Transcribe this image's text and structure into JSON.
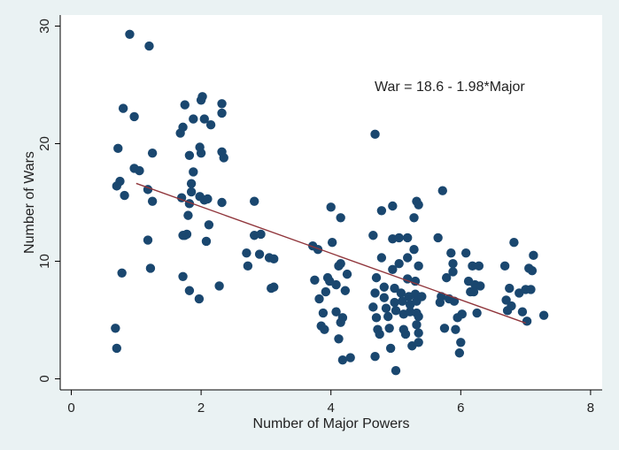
{
  "chart_data": {
    "type": "scatter",
    "title": "",
    "xlabel": "Number of Major Powers",
    "ylabel": "Number of Wars",
    "xlim": [
      0,
      8
    ],
    "ylim": [
      0,
      30
    ],
    "xticks": [
      0,
      2,
      4,
      6,
      8
    ],
    "yticks": [
      0,
      10,
      20,
      30
    ],
    "grid": false,
    "annotation": "War = 18.6 - 1.98*Major",
    "fit_line": {
      "intercept": 18.6,
      "slope": -1.98,
      "x_range": [
        1.0,
        7.0
      ]
    },
    "colors": {
      "background": "#eaf2f3",
      "plot_bg": "#ffffff",
      "points": "#1a476f",
      "fit_line": "#90353b"
    },
    "series": [
      {
        "points": [
          [
            0.9,
            29.3
          ],
          [
            1.2,
            28.3
          ],
          [
            0.8,
            23.0
          ],
          [
            0.97,
            22.3
          ],
          [
            0.72,
            19.6
          ],
          [
            0.97,
            17.9
          ],
          [
            1.05,
            17.7
          ],
          [
            0.75,
            16.8
          ],
          [
            0.7,
            16.4
          ],
          [
            0.82,
            15.6
          ],
          [
            1.18,
            16.1
          ],
          [
            1.25,
            15.1
          ],
          [
            1.25,
            19.2
          ],
          [
            1.18,
            11.8
          ],
          [
            1.22,
            9.4
          ],
          [
            0.78,
            9.0
          ],
          [
            0.68,
            4.3
          ],
          [
            0.7,
            2.6
          ],
          [
            1.68,
            20.9
          ],
          [
            1.72,
            21.4
          ],
          [
            1.75,
            23.3
          ],
          [
            1.82,
            19.0
          ],
          [
            1.88,
            22.1
          ],
          [
            1.88,
            17.6
          ],
          [
            1.85,
            16.6
          ],
          [
            1.85,
            15.9
          ],
          [
            1.82,
            14.9
          ],
          [
            1.7,
            15.4
          ],
          [
            1.8,
            13.9
          ],
          [
            1.72,
            12.2
          ],
          [
            1.78,
            12.3
          ],
          [
            1.72,
            8.7
          ],
          [
            1.82,
            7.5
          ],
          [
            1.97,
            6.8
          ],
          [
            1.98,
            19.7
          ],
          [
            2.0,
            23.7
          ],
          [
            2.02,
            24.0
          ],
          [
            2.05,
            22.1
          ],
          [
            2.15,
            21.6
          ],
          [
            2.0,
            19.2
          ],
          [
            1.98,
            15.5
          ],
          [
            2.05,
            15.2
          ],
          [
            2.1,
            15.3
          ],
          [
            2.12,
            13.1
          ],
          [
            2.08,
            11.7
          ],
          [
            2.32,
            23.4
          ],
          [
            2.32,
            22.6
          ],
          [
            2.32,
            19.3
          ],
          [
            2.35,
            18.8
          ],
          [
            2.32,
            15.0
          ],
          [
            2.28,
            7.9
          ],
          [
            1.75,
            12.2
          ],
          [
            2.7,
            10.7
          ],
          [
            2.72,
            9.6
          ],
          [
            2.82,
            15.1
          ],
          [
            2.82,
            12.2
          ],
          [
            2.9,
            10.6
          ],
          [
            2.92,
            12.3
          ],
          [
            3.05,
            10.3
          ],
          [
            3.08,
            7.7
          ],
          [
            3.12,
            10.2
          ],
          [
            3.12,
            7.8
          ],
          [
            3.72,
            11.3
          ],
          [
            3.75,
            8.4
          ],
          [
            3.8,
            11.0
          ],
          [
            3.82,
            6.8
          ],
          [
            3.85,
            4.5
          ],
          [
            3.88,
            5.6
          ],
          [
            3.9,
            4.2
          ],
          [
            3.92,
            7.4
          ],
          [
            3.95,
            8.6
          ],
          [
            3.98,
            8.3
          ],
          [
            4.0,
            14.6
          ],
          [
            4.02,
            11.6
          ],
          [
            4.08,
            5.7
          ],
          [
            4.08,
            8.0
          ],
          [
            4.12,
            3.4
          ],
          [
            4.12,
            9.6
          ],
          [
            4.15,
            13.7
          ],
          [
            4.15,
            9.8
          ],
          [
            4.15,
            4.8
          ],
          [
            4.18,
            5.2
          ],
          [
            4.18,
            1.6
          ],
          [
            4.22,
            7.5
          ],
          [
            4.25,
            8.9
          ],
          [
            4.3,
            1.8
          ],
          [
            4.68,
            20.8
          ],
          [
            4.65,
            12.2
          ],
          [
            4.7,
            8.6
          ],
          [
            4.68,
            7.3
          ],
          [
            4.65,
            6.1
          ],
          [
            4.7,
            5.2
          ],
          [
            4.72,
            4.2
          ],
          [
            4.75,
            3.8
          ],
          [
            4.68,
            1.9
          ],
          [
            4.78,
            14.3
          ],
          [
            4.78,
            10.3
          ],
          [
            4.82,
            7.8
          ],
          [
            4.82,
            6.9
          ],
          [
            4.85,
            6.0
          ],
          [
            4.88,
            5.3
          ],
          [
            4.9,
            4.3
          ],
          [
            4.92,
            2.6
          ],
          [
            4.95,
            14.7
          ],
          [
            4.95,
            11.9
          ],
          [
            4.95,
            9.3
          ],
          [
            4.98,
            7.7
          ],
          [
            4.98,
            6.5
          ],
          [
            5.0,
            5.8
          ],
          [
            5.0,
            0.7
          ],
          [
            5.05,
            12.0
          ],
          [
            5.05,
            9.8
          ],
          [
            5.08,
            7.3
          ],
          [
            5.1,
            6.6
          ],
          [
            5.12,
            5.5
          ],
          [
            5.12,
            4.2
          ],
          [
            5.15,
            3.8
          ],
          [
            5.18,
            12.0
          ],
          [
            5.18,
            10.3
          ],
          [
            5.18,
            8.5
          ],
          [
            5.2,
            7.0
          ],
          [
            5.22,
            6.3
          ],
          [
            5.22,
            5.7
          ],
          [
            5.25,
            2.8
          ],
          [
            5.28,
            13.7
          ],
          [
            5.28,
            11.0
          ],
          [
            5.3,
            8.3
          ],
          [
            5.3,
            7.2
          ],
          [
            5.32,
            6.6
          ],
          [
            5.32,
            5.6
          ],
          [
            5.32,
            4.6
          ],
          [
            5.35,
            3.9
          ],
          [
            5.32,
            15.1
          ],
          [
            5.35,
            14.8
          ],
          [
            5.35,
            9.6
          ],
          [
            5.35,
            3.1
          ],
          [
            5.35,
            5.3
          ],
          [
            5.4,
            7.0
          ],
          [
            5.65,
            12.0
          ],
          [
            5.68,
            6.5
          ],
          [
            5.7,
            7.0
          ],
          [
            5.72,
            16.0
          ],
          [
            5.75,
            4.3
          ],
          [
            5.78,
            8.6
          ],
          [
            5.82,
            6.8
          ],
          [
            5.85,
            10.7
          ],
          [
            5.88,
            9.8
          ],
          [
            5.88,
            9.1
          ],
          [
            5.9,
            6.6
          ],
          [
            5.92,
            4.2
          ],
          [
            5.95,
            5.2
          ],
          [
            5.98,
            2.2
          ],
          [
            6.0,
            3.1
          ],
          [
            6.02,
            5.5
          ],
          [
            6.08,
            10.7
          ],
          [
            6.12,
            8.3
          ],
          [
            6.15,
            7.4
          ],
          [
            6.18,
            9.6
          ],
          [
            6.2,
            7.4
          ],
          [
            6.22,
            8.0
          ],
          [
            6.25,
            5.6
          ],
          [
            6.28,
            9.6
          ],
          [
            6.3,
            7.9
          ],
          [
            6.68,
            9.6
          ],
          [
            6.7,
            6.7
          ],
          [
            6.72,
            5.8
          ],
          [
            6.75,
            7.7
          ],
          [
            6.78,
            6.2
          ],
          [
            6.82,
            11.6
          ],
          [
            6.9,
            7.3
          ],
          [
            6.95,
            5.7
          ],
          [
            7.0,
            7.6
          ],
          [
            7.02,
            4.9
          ],
          [
            7.05,
            9.4
          ],
          [
            7.08,
            7.6
          ],
          [
            7.1,
            9.2
          ],
          [
            7.12,
            10.5
          ],
          [
            7.28,
            5.4
          ]
        ]
      }
    ]
  }
}
